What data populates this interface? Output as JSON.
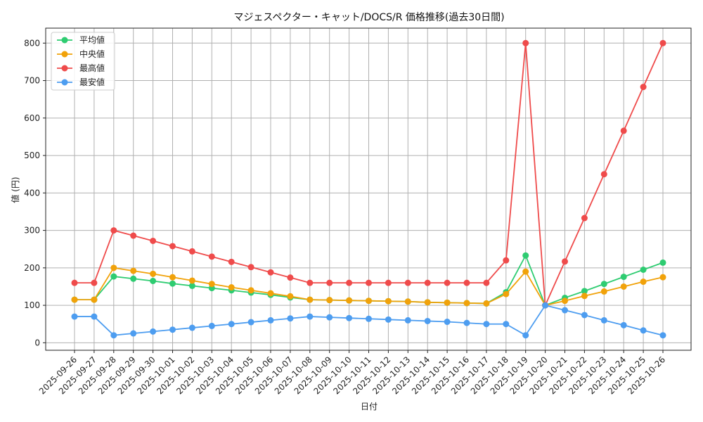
{
  "chart_data": {
    "type": "line",
    "title": "マジェスペクター・キャット/DOCS/R 価格推移(過去30日間)",
    "xlabel": "日付",
    "ylabel": "値 (円)",
    "ylim": [
      -20,
      840
    ],
    "yticks": [
      0,
      100,
      200,
      300,
      400,
      500,
      600,
      700,
      800
    ],
    "grid": true,
    "legend_position": "top-left",
    "categories": [
      "2025-09-26",
      "2025-09-27",
      "2025-09-28",
      "2025-09-29",
      "2025-09-30",
      "2025-10-01",
      "2025-10-02",
      "2025-10-03",
      "2025-10-04",
      "2025-10-05",
      "2025-10-06",
      "2025-10-07",
      "2025-10-08",
      "2025-10-09",
      "2025-10-10",
      "2025-10-11",
      "2025-10-12",
      "2025-10-13",
      "2025-10-14",
      "2025-10-15",
      "2025-10-16",
      "2025-10-17",
      "2025-10-18",
      "2025-10-19",
      "2025-10-20",
      "2025-10-21",
      "2025-10-22",
      "2025-10-23",
      "2025-10-24",
      "2025-10-25",
      "2025-10-26"
    ],
    "series": [
      {
        "name": "平均値",
        "color": "#2ecc71",
        "values": [
          115,
          115,
          177,
          171,
          165,
          158,
          152,
          146,
          140,
          134,
          128,
          121,
          115,
          114,
          113,
          112,
          111,
          110,
          108,
          107,
          106,
          105,
          135,
          233,
          100,
          120,
          138,
          157,
          176,
          195,
          214
        ]
      },
      {
        "name": "中央値",
        "color": "#f1a20a",
        "values": [
          115,
          115,
          200,
          192,
          184,
          175,
          166,
          157,
          148,
          140,
          132,
          124,
          115,
          114,
          113,
          112,
          111,
          110,
          108,
          107,
          106,
          105,
          130,
          190,
          100,
          112,
          125,
          137,
          150,
          163,
          175
        ]
      },
      {
        "name": "最高値",
        "color": "#ef4b4b",
        "values": [
          160,
          160,
          300,
          286,
          272,
          258,
          244,
          230,
          216,
          202,
          188,
          174,
          160,
          160,
          160,
          160,
          160,
          160,
          160,
          160,
          160,
          160,
          220,
          800,
          100,
          217,
          333,
          450,
          566,
          683,
          800
        ]
      },
      {
        "name": "最安値",
        "color": "#4d9df0",
        "values": [
          70,
          70,
          20,
          25,
          30,
          35,
          40,
          45,
          50,
          55,
          60,
          65,
          70,
          68,
          66,
          64,
          62,
          60,
          58,
          56,
          53,
          50,
          50,
          20,
          100,
          87,
          74,
          60,
          47,
          33,
          20
        ]
      }
    ]
  }
}
